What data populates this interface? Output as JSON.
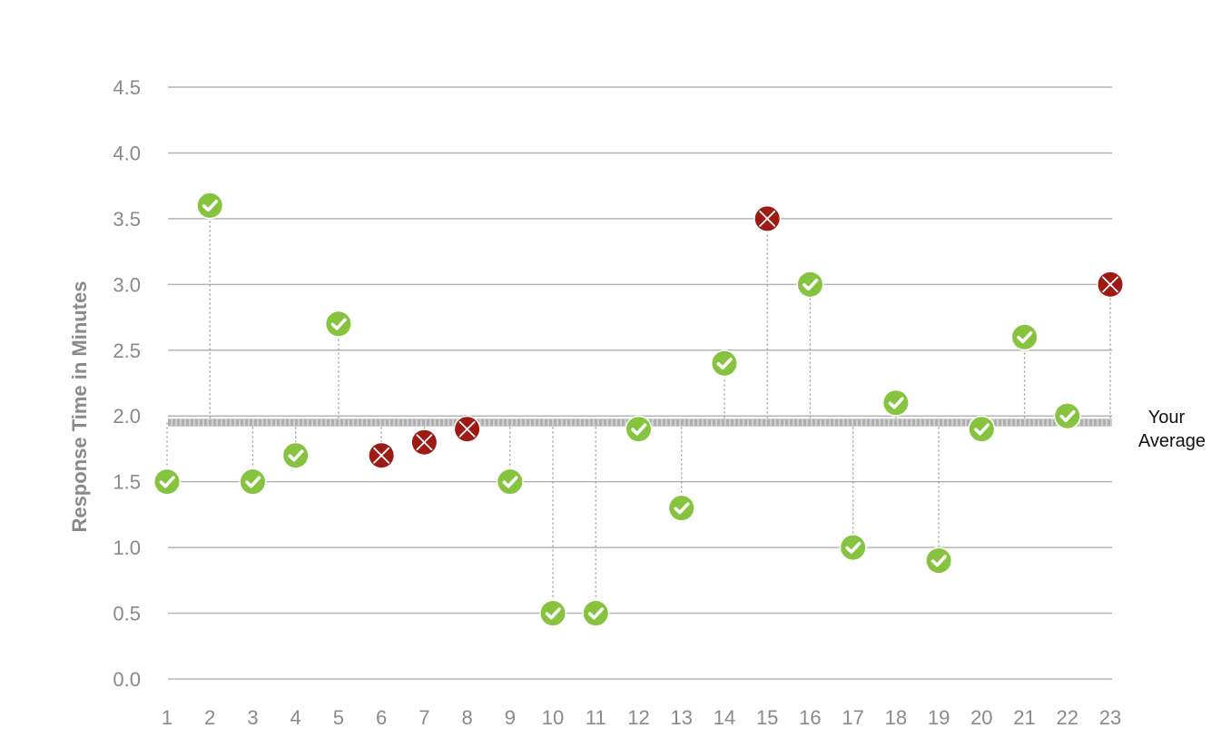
{
  "chart_data": {
    "type": "scatter",
    "title": "",
    "xlabel": "",
    "ylabel": "Response Time in Minutes",
    "x": [
      1,
      2,
      3,
      4,
      5,
      6,
      7,
      8,
      9,
      10,
      11,
      12,
      13,
      14,
      15,
      16,
      17,
      18,
      19,
      20,
      21,
      22,
      23
    ],
    "values": [
      1.5,
      3.6,
      1.5,
      1.7,
      2.7,
      1.7,
      1.8,
      1.9,
      1.5,
      0.5,
      0.5,
      1.9,
      1.3,
      2.4,
      3.5,
      3.0,
      1.0,
      2.1,
      0.9,
      1.9,
      2.6,
      2.0,
      3.0
    ],
    "status": [
      "pass",
      "pass",
      "pass",
      "pass",
      "pass",
      "fail",
      "fail",
      "fail",
      "pass",
      "pass",
      "pass",
      "pass",
      "pass",
      "pass",
      "fail",
      "pass",
      "pass",
      "pass",
      "pass",
      "pass",
      "pass",
      "pass",
      "fail"
    ],
    "ylim": [
      0,
      4.5
    ],
    "yticks": [
      "0.0",
      "0.5",
      "1.0",
      "1.5",
      "2.0",
      "2.5",
      "3.0",
      "3.5",
      "4.0",
      "4.5"
    ],
    "xticks": [
      "1",
      "2",
      "3",
      "4",
      "5",
      "6",
      "7",
      "8",
      "9",
      "10",
      "11",
      "12",
      "13",
      "14",
      "15",
      "16",
      "17",
      "18",
      "19",
      "20",
      "21",
      "22",
      "23"
    ],
    "grid": true,
    "average": {
      "value": 1.95,
      "label_line1": "Your",
      "label_line2": "Average"
    },
    "colors": {
      "pass": "#86c43f",
      "fail": "#9e1b15",
      "grid": "#b5b5b5",
      "average_line": "#b0b0b0",
      "connector": "#9a9a9a",
      "text": "#8a8a8a"
    }
  }
}
